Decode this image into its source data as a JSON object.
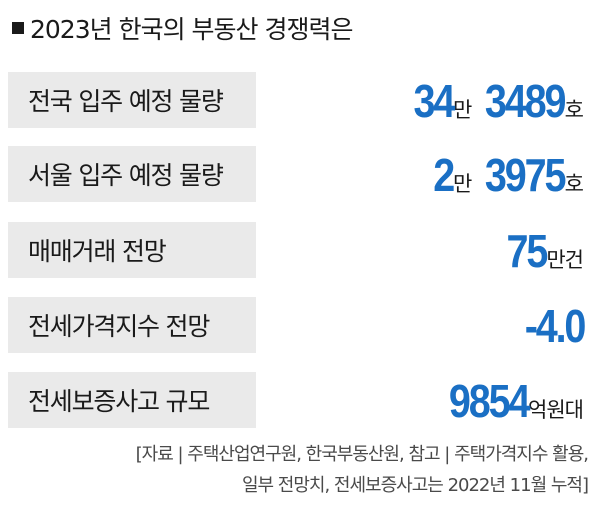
{
  "title": "2023년 한국의 부동산 경쟁력은",
  "rows": [
    {
      "label": "전국 입주 예정 물량",
      "value_parts": [
        {
          "text": "34",
          "kind": "number"
        },
        {
          "text": "만",
          "kind": "unit"
        },
        {
          "text": "3489",
          "kind": "number"
        },
        {
          "text": "호",
          "kind": "unit"
        }
      ]
    },
    {
      "label": "서울 입주 예정 물량",
      "value_parts": [
        {
          "text": "2",
          "kind": "number"
        },
        {
          "text": "만",
          "kind": "unit"
        },
        {
          "text": "3975",
          "kind": "number"
        },
        {
          "text": "호",
          "kind": "unit"
        }
      ]
    },
    {
      "label": "매매거래 전망",
      "value_parts": [
        {
          "text": "75",
          "kind": "number"
        },
        {
          "text": "만건",
          "kind": "unit"
        }
      ]
    },
    {
      "label": "전세가격지수 전망",
      "value_parts": [
        {
          "text": "-4.0",
          "kind": "number"
        }
      ]
    },
    {
      "label": "전세보증사고 규모",
      "value_parts": [
        {
          "text": "9854",
          "kind": "number"
        },
        {
          "text": "억원대",
          "kind": "unit"
        }
      ]
    }
  ],
  "source": {
    "line1": "[자료 | 주택산업연구원, 한국부동산원, 참고 | 주택가격지수 활용,",
    "line2": "일부 전망치, 전세보증사고는 2022년 11월 누적]"
  },
  "colors": {
    "accent": "#1a6fc4",
    "label_bg": "#eaeaea",
    "text": "#1a1a1a"
  }
}
